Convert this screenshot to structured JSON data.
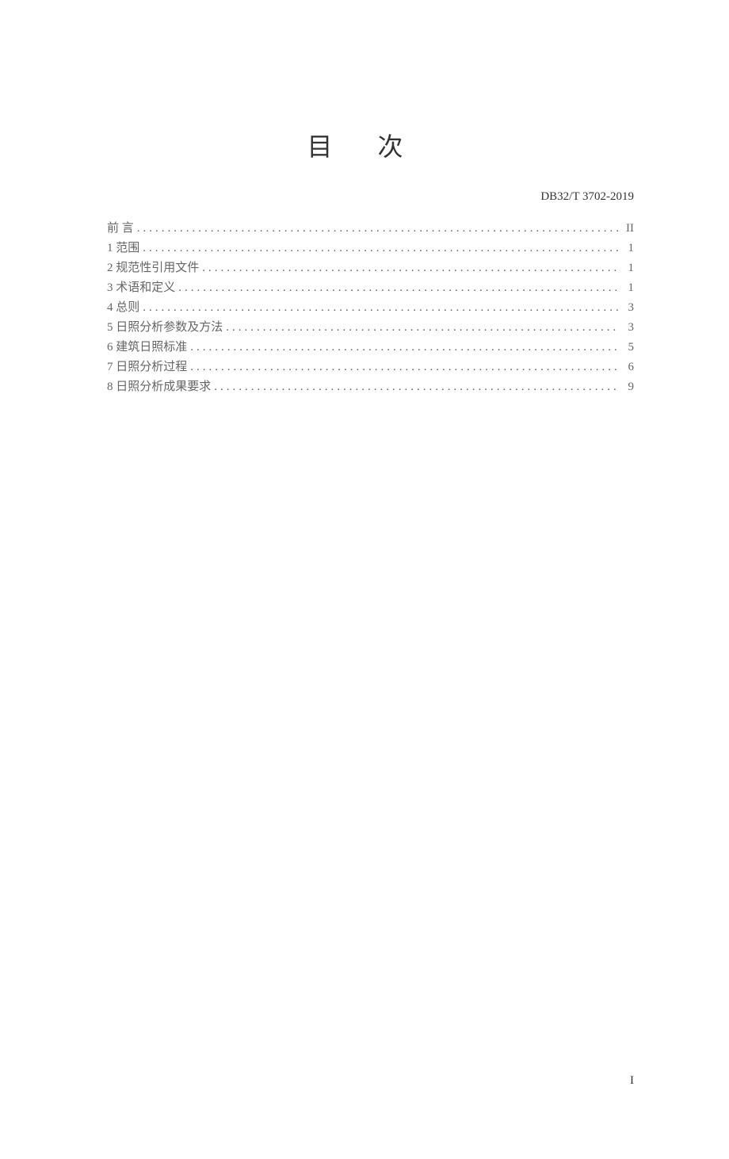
{
  "header": {
    "standard_code": "DB32/T 3702-2019"
  },
  "title": "目 次",
  "toc": {
    "items": [
      {
        "label": "前  言",
        "page": "II"
      },
      {
        "label": "1 范围",
        "page": "1"
      },
      {
        "label": "2 规范性引用文件",
        "page": "1"
      },
      {
        "label": "3 术语和定义",
        "page": "1"
      },
      {
        "label": "4 总则",
        "page": "3"
      },
      {
        "label": "5 日照分析参数及方法",
        "page": "3"
      },
      {
        "label": "6 建筑日照标准",
        "page": "5"
      },
      {
        "label": "7 日照分析过程",
        "page": "6"
      },
      {
        "label": "8 日照分析成果要求",
        "page": "9"
      }
    ]
  },
  "footer": {
    "page_number": "I"
  }
}
